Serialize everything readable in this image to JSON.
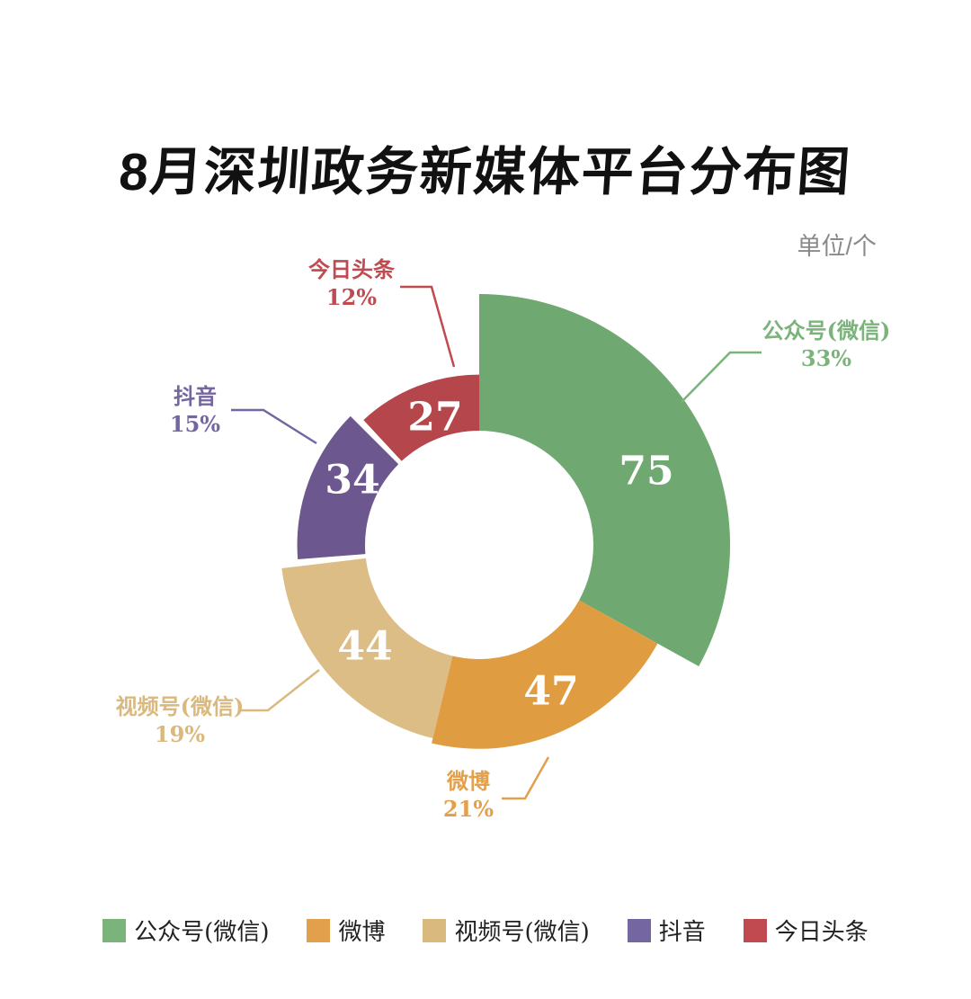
{
  "title": "8月深圳政务新媒体平台分布图",
  "unit_label": "单位/个",
  "chart_data": {
    "type": "pie",
    "subtype": "rose-donut",
    "title": "8月深圳政务新媒体平台分布图",
    "unit": "单位/个",
    "categories": [
      "公众号(微信)",
      "微博",
      "视频号(微信)",
      "抖音",
      "今日头条"
    ],
    "values": [
      75,
      47,
      44,
      34,
      27
    ],
    "percents": [
      "33%",
      "21%",
      "19%",
      "15%",
      "12%"
    ],
    "colors": [
      "#6FA870",
      "#E09C40",
      "#DCBD85",
      "#6C578F",
      "#B5464C"
    ],
    "label_colors": [
      "#7AB47A",
      "#E2A04C",
      "#D9B97E",
      "#7466A0",
      "#C14950"
    ],
    "legend_position": "bottom",
    "grid": false
  }
}
